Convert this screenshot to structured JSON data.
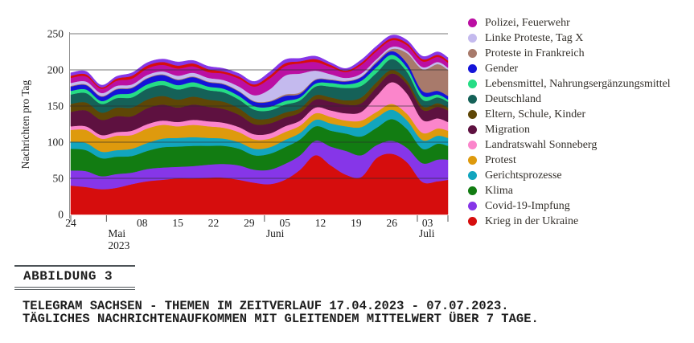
{
  "axes": {
    "y_axis_label": "Nachrichten pro Tag",
    "y_ticks": [
      {
        "value": 0,
        "label": "0"
      },
      {
        "value": 50,
        "label": "50"
      },
      {
        "value": 100,
        "label": "100"
      },
      {
        "value": 150,
        "label": "150"
      },
      {
        "value": 200,
        "label": "200"
      },
      {
        "value": 250,
        "label": "250"
      }
    ],
    "x_day_ticks": [
      {
        "day": 0,
        "label": "24"
      },
      {
        "day": 14,
        "label": "08"
      },
      {
        "day": 21,
        "label": "15"
      },
      {
        "day": 28,
        "label": "22"
      },
      {
        "day": 35,
        "label": "29"
      },
      {
        "day": 42,
        "label": "05"
      },
      {
        "day": 49,
        "label": "12"
      },
      {
        "day": 56,
        "label": "19"
      },
      {
        "day": 63,
        "label": "26"
      },
      {
        "day": 70,
        "label": "03"
      }
    ],
    "x_month_ticks": [
      {
        "day": 7,
        "label": "Mai",
        "sublabel": "2023"
      },
      {
        "day": 38,
        "label": "Juni",
        "sublabel": ""
      },
      {
        "day": 68,
        "label": "Juli",
        "sublabel": ""
      }
    ],
    "x_axis_mark_days": [
      0,
      7,
      38,
      68,
      74
    ],
    "grid_values": [
      50,
      100,
      150,
      200,
      250
    ]
  },
  "chart_data": {
    "type": "area",
    "stacked": true,
    "ylabel": "Nachrichten pro Tag",
    "ylim": [
      0,
      250
    ],
    "x_day_range": [
      0,
      74
    ],
    "x_days": [
      0,
      3,
      6,
      9,
      12,
      15,
      18,
      21,
      24,
      27,
      30,
      33,
      36,
      39,
      42,
      45,
      48,
      51,
      54,
      57,
      60,
      63,
      66,
      69,
      72,
      74
    ],
    "series": [
      {
        "id": "krieg-in-der-ukraine",
        "name": "Krieg in der Ukraine",
        "color": "#D60D0D",
        "in_legend": true,
        "values": [
          40,
          38,
          35,
          37,
          42,
          46,
          48,
          50,
          50,
          51,
          51,
          48,
          44,
          42,
          48,
          62,
          82,
          68,
          55,
          52,
          78,
          84,
          72,
          45,
          46,
          48
        ]
      },
      {
        "id": "covid-19-impfung",
        "name": "Covid-19-Impfung",
        "color": "#8636E8",
        "in_legend": true,
        "values": [
          21,
          22,
          18,
          19,
          16,
          17,
          17,
          16,
          17,
          18,
          19,
          20,
          18,
          20,
          22,
          20,
          20,
          26,
          33,
          30,
          18,
          18,
          20,
          26,
          30,
          28
        ]
      },
      {
        "id": "klima",
        "name": "Klima",
        "color": "#127C12",
        "in_legend": true,
        "values": [
          30,
          29,
          25,
          24,
          23,
          25,
          28,
          28,
          28,
          26,
          25,
          23,
          20,
          22,
          23,
          22,
          20,
          22,
          24,
          26,
          24,
          30,
          26,
          20,
          22,
          19
        ]
      },
      {
        "id": "gerichtsprozesse",
        "name": "Gerichtsprozesse",
        "color": "#12A5BE",
        "in_legend": true,
        "values": [
          10,
          10,
          9,
          9,
          10,
          11,
          12,
          12,
          12,
          11,
          10,
          9,
          9,
          9,
          10,
          9,
          9,
          10,
          10,
          13,
          14,
          13,
          12,
          12,
          11,
          11
        ]
      },
      {
        "id": "protest",
        "name": "Protest",
        "color": "#DE9A0D",
        "in_legend": true,
        "values": [
          16,
          18,
          18,
          20,
          19,
          20,
          19,
          16,
          17,
          16,
          15,
          14,
          13,
          12,
          11,
          10,
          9,
          9,
          8,
          9,
          8,
          8,
          9,
          10,
          10,
          10
        ]
      },
      {
        "id": "landratswahl-sonneberg",
        "name": "Landratswahl Sonneberg",
        "color": "#FB85CB",
        "in_legend": true,
        "values": [
          5,
          5,
          5,
          5,
          6,
          6,
          6,
          6,
          7,
          7,
          7,
          7,
          7,
          7,
          8,
          7,
          8,
          9,
          10,
          12,
          22,
          30,
          28,
          18,
          14,
          12
        ]
      },
      {
        "id": "migration",
        "name": "Migration",
        "color": "#5E1140",
        "in_legend": true,
        "values": [
          20,
          22,
          21,
          22,
          20,
          22,
          22,
          20,
          21,
          20,
          19,
          17,
          14,
          14,
          12,
          11,
          11,
          12,
          12,
          12,
          12,
          12,
          13,
          14,
          16,
          16
        ]
      },
      {
        "id": "eltern-schule-kinder",
        "name": "Eltern, Schule, Kinder",
        "color": "#5E4606",
        "in_legend": true,
        "values": [
          11,
          11,
          10,
          12,
          12,
          12,
          12,
          11,
          11,
          10,
          10,
          9,
          8,
          7,
          7,
          6,
          6,
          6,
          6,
          8,
          7,
          5,
          5,
          5,
          5,
          4
        ]
      },
      {
        "id": "deutschland",
        "name": "Deutschland",
        "color": "#156158",
        "in_legend": true,
        "values": [
          13,
          13,
          12,
          13,
          14,
          15,
          15,
          14,
          14,
          13,
          13,
          12,
          12,
          11,
          11,
          11,
          12,
          15,
          17,
          16,
          13,
          15,
          12,
          9,
          8,
          8
        ]
      },
      {
        "id": "lebensmittel-nahrungsergaenzungsmittel",
        "name": "Lebensmittel, Nahrungsergänzungsmittel",
        "color": "#25DD85",
        "in_legend": true,
        "values": [
          5,
          5,
          4,
          5,
          6,
          6,
          6,
          6,
          6,
          5,
          5,
          5,
          5,
          5,
          5,
          4,
          4,
          5,
          5,
          7,
          8,
          6,
          6,
          6,
          4,
          3
        ]
      },
      {
        "id": "gender",
        "name": "Gender",
        "color": "#1414D9",
        "in_legend": true,
        "values": [
          6,
          6,
          6,
          7,
          7,
          8,
          8,
          7,
          7,
          6,
          6,
          6,
          6,
          7,
          7,
          5,
          5,
          4,
          4,
          5,
          6,
          5,
          6,
          6,
          5,
          5
        ]
      },
      {
        "id": "proteste-in-frankreich",
        "name": "Proteste in Frankreich",
        "color": "#A87A6B",
        "in_legend": true,
        "values": [
          1,
          1,
          1,
          1,
          1,
          1,
          1,
          1,
          1,
          1,
          1,
          1,
          1,
          1,
          2,
          2,
          1,
          1,
          1,
          1,
          2,
          3,
          14,
          30,
          37,
          36
        ]
      },
      {
        "id": "linke-proteste-tag-x",
        "name": "Linke Proteste, Tag X",
        "color": "#C4BAEE",
        "in_legend": true,
        "values": [
          4,
          4,
          4,
          4,
          4,
          4,
          4,
          5,
          5,
          5,
          5,
          6,
          8,
          16,
          26,
          26,
          12,
          7,
          4,
          4,
          3,
          3,
          3,
          3,
          3,
          3
        ]
      },
      {
        "id": "polizei-feuerwehr",
        "name": "Polizei, Feuerwehr",
        "color": "#BB0FA3",
        "in_legend": true,
        "values": [
          7,
          7,
          6,
          7,
          8,
          9,
          9,
          10,
          9,
          8,
          9,
          11,
          12,
          15,
          13,
          14,
          12,
          10,
          8,
          12,
          11,
          9,
          8,
          8,
          7,
          7
        ]
      },
      {
        "id": "unlabeled-red-cap",
        "name": "",
        "color": "#D60D0D",
        "in_legend": false,
        "values": [
          3,
          3,
          2,
          3,
          4,
          4,
          4,
          4,
          4,
          4,
          3,
          3,
          3,
          4,
          4,
          3,
          4,
          3,
          2,
          3,
          3,
          3,
          3,
          3,
          3,
          3
        ]
      },
      {
        "id": "unlabeled-violet-cap",
        "name": "",
        "color": "#8636E8",
        "in_legend": false,
        "values": [
          4,
          4,
          3,
          3,
          4,
          4,
          4,
          5,
          4,
          4,
          4,
          4,
          4,
          5,
          5,
          4,
          4,
          3,
          3,
          4,
          4,
          4,
          4,
          4,
          4,
          4
        ]
      }
    ]
  },
  "legend": {
    "items": [
      {
        "label": "Polizei, Feuerwehr",
        "color": "#BB0FA3"
      },
      {
        "label": "Linke Proteste, Tag X",
        "color": "#C4BAEE"
      },
      {
        "label": "Proteste in Frankreich",
        "color": "#A87A6B"
      },
      {
        "label": "Gender",
        "color": "#1414D9"
      },
      {
        "label": "Lebensmittel, Nahrungsergänzungsmittel",
        "color": "#25DD85"
      },
      {
        "label": "Deutschland",
        "color": "#156158"
      },
      {
        "label": "Eltern, Schule, Kinder",
        "color": "#5E4606"
      },
      {
        "label": "Migration",
        "color": "#5E1140"
      },
      {
        "label": "Landratswahl Sonneberg",
        "color": "#FB85CB"
      },
      {
        "label": "Protest",
        "color": "#DE9A0D"
      },
      {
        "label": "Gerichtsprozesse",
        "color": "#12A5BE"
      },
      {
        "label": "Klima",
        "color": "#127C12"
      },
      {
        "label": "Covid-19-Impfung",
        "color": "#8636E8"
      },
      {
        "label": "Krieg in der Ukraine",
        "color": "#D60D0D"
      }
    ]
  },
  "caption": {
    "label": "ABBILDUNG 3",
    "line1": "TELEGRAM SACHSEN - THEMEN IM ZEITVERLAUF 17.04.2023 - 07.07.2023.",
    "line2": "TÄGLICHES NACHRICHTENAUFKOMMEN MIT GLEITENDEM MITTELWERT ÜBER 7 TAGE."
  }
}
